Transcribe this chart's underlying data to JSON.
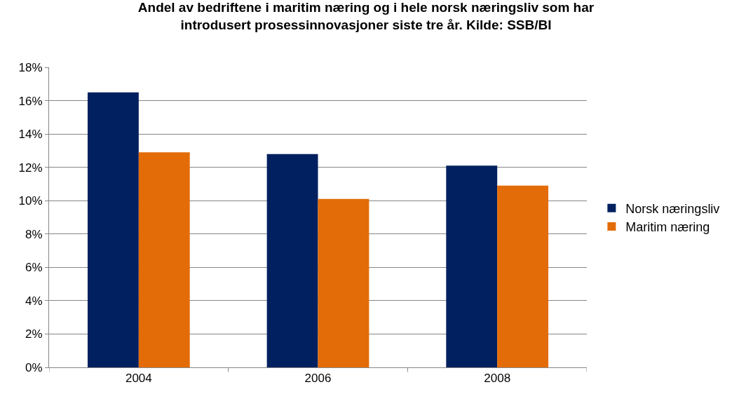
{
  "chart_data": {
    "type": "bar",
    "title": "Andel av bedriftene i maritim næring og i hele norsk næringsliv som har introdusert prosessinnovasjoner siste tre år. Kilde: SSB/BI",
    "categories": [
      "2004",
      "2006",
      "2008"
    ],
    "series": [
      {
        "name": "Norsk næringsliv",
        "color": "#002060",
        "values": [
          16.5,
          12.8,
          12.1
        ]
      },
      {
        "name": "Maritim næring",
        "color": "#e36c09",
        "values": [
          12.9,
          10.1,
          10.9
        ]
      }
    ],
    "ylim": [
      0,
      18
    ],
    "yticks": [
      {
        "value": 0,
        "label": "0%"
      },
      {
        "value": 2,
        "label": "2%"
      },
      {
        "value": 4,
        "label": "4%"
      },
      {
        "value": 6,
        "label": "6%"
      },
      {
        "value": 8,
        "label": "8%"
      },
      {
        "value": 10,
        "label": "10%"
      },
      {
        "value": 12,
        "label": "12%"
      },
      {
        "value": 14,
        "label": "14%"
      },
      {
        "value": 16,
        "label": "16%"
      },
      {
        "value": 18,
        "label": "18%"
      }
    ],
    "grid": "y",
    "legend": "right"
  }
}
